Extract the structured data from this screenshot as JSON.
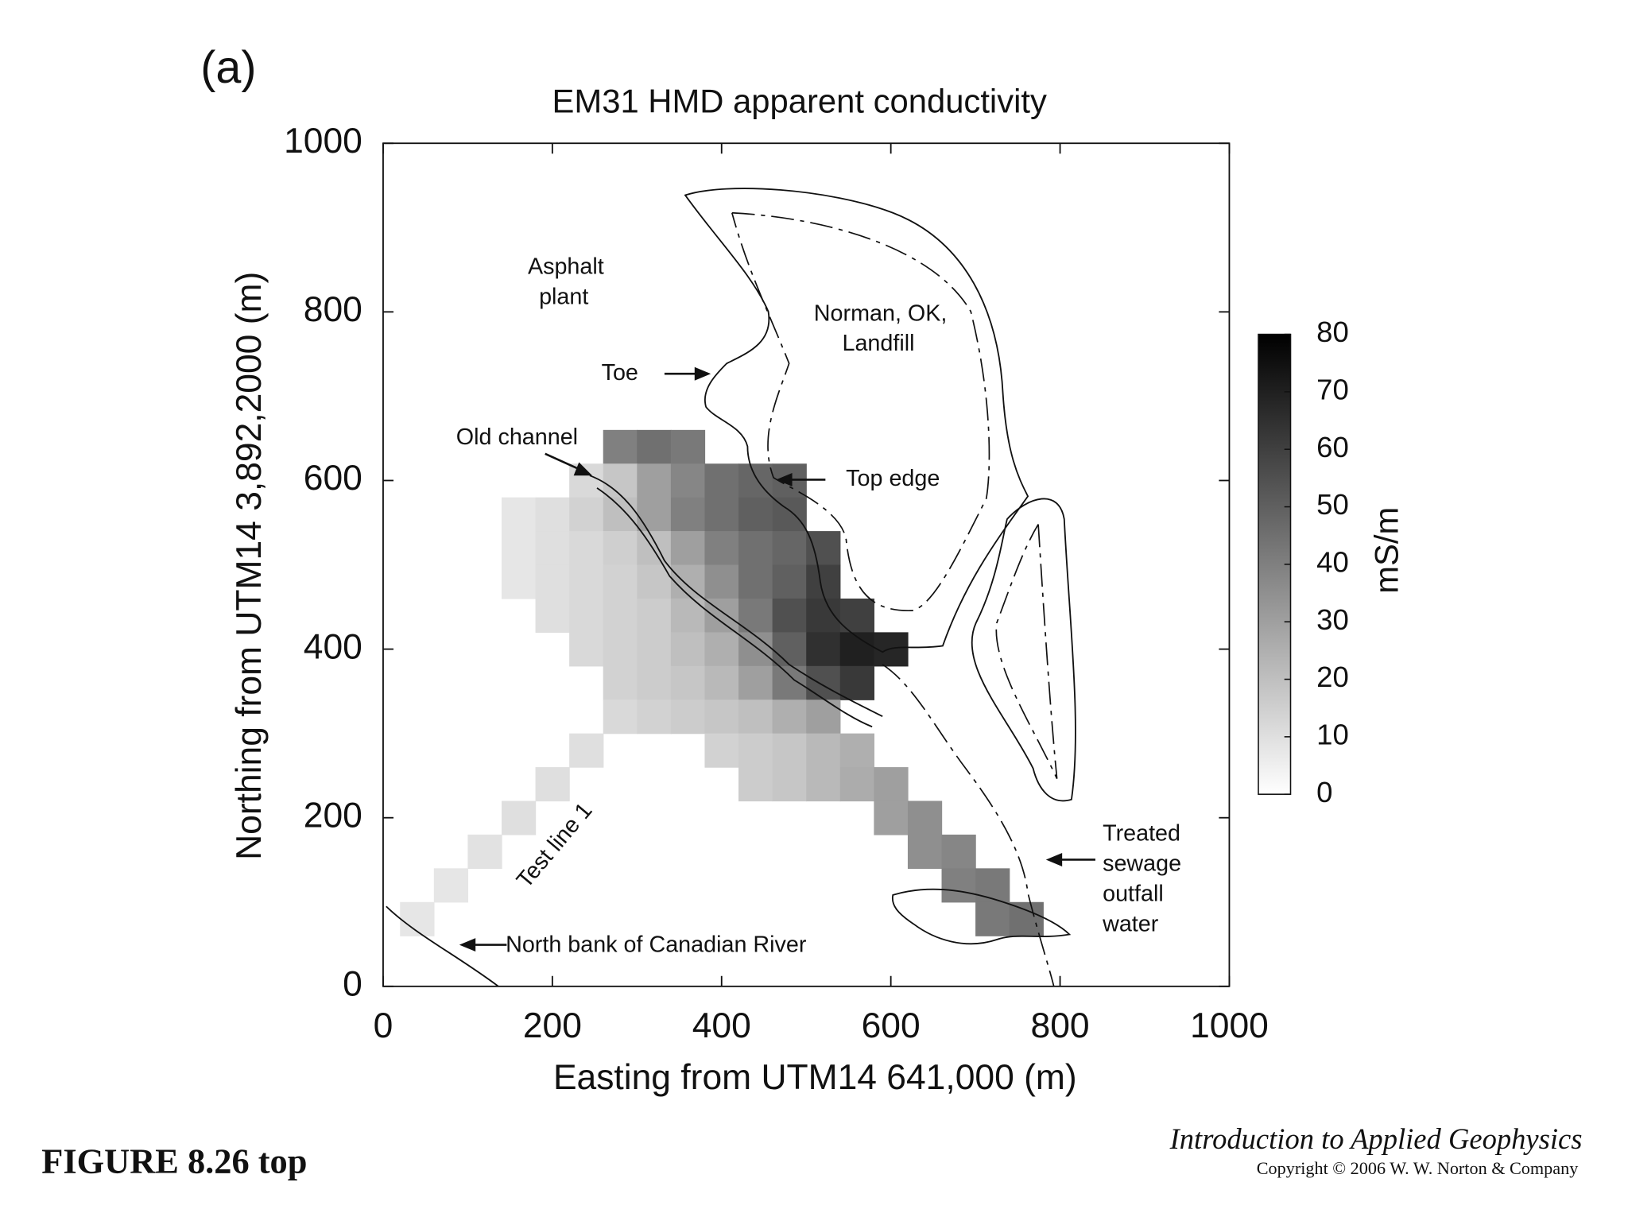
{
  "chart_data": {
    "type": "heatmap",
    "panel_label": "(a)",
    "title": "EM31 HMD apparent conductivity",
    "xlabel": "Easting from UTM14 641,000 (m)",
    "ylabel": "Northing from UTM14 3,892,2000 (m)",
    "xlim": [
      0,
      1000
    ],
    "ylim": [
      0,
      1000
    ],
    "xticks": [
      0,
      200,
      400,
      600,
      800,
      1000
    ],
    "yticks": [
      0,
      200,
      400,
      600,
      800,
      1000
    ],
    "cell": 40,
    "rows": [
      {
        "y": 640,
        "x0": 280,
        "values": [
          40,
          45,
          42
        ]
      },
      {
        "y": 600,
        "x0": 240,
        "values": [
          12,
          18,
          30,
          38,
          45,
          48,
          50
        ]
      },
      {
        "y": 560,
        "x0": 160,
        "values": [
          8,
          10,
          14,
          20,
          30,
          40,
          45,
          50,
          52
        ]
      },
      {
        "y": 520,
        "x0": 160,
        "values": [
          8,
          10,
          12,
          15,
          20,
          30,
          40,
          45,
          48,
          55
        ]
      },
      {
        "y": 480,
        "x0": 160,
        "values": [
          8,
          10,
          12,
          14,
          18,
          25,
          35,
          45,
          50,
          60
        ]
      },
      {
        "y": 440,
        "x0": 200,
        "values": [
          10,
          12,
          14,
          16,
          22,
          30,
          42,
          55,
          62,
          60
        ]
      },
      {
        "y": 400,
        "x0": 240,
        "values": [
          12,
          14,
          16,
          20,
          25,
          35,
          50,
          65,
          70,
          68
        ]
      },
      {
        "y": 360,
        "x0": 280,
        "values": [
          14,
          16,
          18,
          22,
          30,
          42,
          55,
          62
        ]
      },
      {
        "y": 320,
        "x0": 280,
        "values": [
          12,
          14,
          16,
          18,
          20,
          25,
          30
        ]
      },
      {
        "y": 280,
        "x0": 240,
        "values": [
          10,
          null,
          null,
          null,
          14,
          16,
          18,
          22,
          25
        ]
      },
      {
        "y": 240,
        "x0": 200,
        "values": [
          10,
          null,
          null,
          null,
          null,
          null,
          16,
          18,
          22,
          26,
          30
        ]
      },
      {
        "y": 200,
        "x0": 160,
        "values": [
          10,
          null,
          null,
          null,
          null,
          null,
          null,
          null,
          null,
          null,
          null,
          30,
          35
        ]
      },
      {
        "y": 160,
        "x0": 120,
        "values": [
          9,
          null,
          null,
          null,
          null,
          null,
          null,
          null,
          null,
          null,
          null,
          null,
          null,
          35,
          38
        ]
      },
      {
        "y": 120,
        "x0": 80,
        "values": [
          8,
          null,
          null,
          null,
          null,
          null,
          null,
          null,
          null,
          null,
          null,
          null,
          null,
          null,
          null,
          40,
          42
        ]
      },
      {
        "y": 80,
        "x0": 40,
        "values": [
          8,
          null,
          null,
          null,
          null,
          null,
          null,
          null,
          null,
          null,
          null,
          null,
          null,
          null,
          null,
          null,
          null,
          42,
          45
        ]
      }
    ],
    "colorbar": {
      "label": "mS/m",
      "clim": [
        0,
        80
      ],
      "ticks": [
        0,
        10,
        20,
        30,
        40,
        50,
        60,
        70,
        80
      ]
    },
    "annotations": [
      {
        "lines": [
          "Asphalt",
          "plant"
        ]
      },
      {
        "lines": [
          "Norman, OK,",
          "Landfill"
        ]
      },
      {
        "lines": [
          "Toe"
        ]
      },
      {
        "lines": [
          "Old channel"
        ]
      },
      {
        "lines": [
          "Top edge"
        ]
      },
      {
        "lines": [
          "Treated",
          "sewage",
          "outfall",
          "water"
        ]
      },
      {
        "lines": [
          "Test line 1"
        ]
      },
      {
        "lines": [
          "North bank of Canadian River"
        ]
      }
    ]
  },
  "footer": {
    "figure": "FIGURE 8.26 top",
    "book": "Introduction to Applied Geophysics",
    "copyright": "Copyright © 2006 W. W. Norton & Company"
  }
}
